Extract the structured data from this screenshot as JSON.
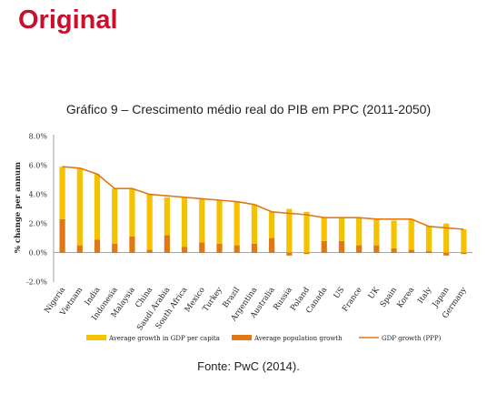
{
  "header": {
    "label": "Original"
  },
  "source": "Fonte: PwC (2014).",
  "chart_data": {
    "type": "bar",
    "title": "Gráfico 9 – Crescimento médio real do PIB em PPC (2011-2050)",
    "ylabel": "% change per annum",
    "ylim": [
      -2,
      8
    ],
    "yticks": [
      "8.0%",
      "6.0%",
      "4.0%",
      "2.0%",
      "0.0%",
      "-2.0%"
    ],
    "categories": [
      "Nigeria",
      "Vietnam",
      "India",
      "Indonesia",
      "Malaysia",
      "China",
      "Saudi Arabia",
      "South Africa",
      "Mexico",
      "Turkey",
      "Brazil",
      "Argentina",
      "Australia",
      "Russia",
      "Poland",
      "Canada",
      "US",
      "France",
      "UK",
      "Spain",
      "Korea",
      "Italy",
      "Japan",
      "Germany"
    ],
    "series": [
      {
        "name": "Average growth in GDP per capita",
        "type": "bar",
        "color": "#f5c200",
        "values": [
          3.6,
          5.3,
          4.5,
          3.8,
          3.3,
          3.8,
          2.6,
          3.4,
          3.0,
          3.0,
          3.0,
          2.7,
          1.8,
          3.0,
          2.8,
          1.6,
          1.6,
          1.9,
          1.8,
          1.9,
          2.1,
          1.7,
          2.0,
          1.6
        ]
      },
      {
        "name": "Average population growth",
        "type": "bar",
        "color": "#e07818",
        "values": [
          2.3,
          0.5,
          0.9,
          0.6,
          1.1,
          0.2,
          1.2,
          0.4,
          0.7,
          0.6,
          0.5,
          0.6,
          1.0,
          -0.2,
          -0.1,
          0.8,
          0.8,
          0.5,
          0.5,
          0.3,
          0.2,
          0.1,
          -0.2,
          -0.1
        ]
      },
      {
        "name": "GDP growth (PPP)",
        "type": "line",
        "color": "#e07818",
        "values": [
          5.9,
          5.8,
          5.4,
          4.4,
          4.4,
          4.0,
          3.9,
          3.8,
          3.7,
          3.6,
          3.5,
          3.3,
          2.8,
          2.7,
          2.6,
          2.4,
          2.4,
          2.4,
          2.3,
          2.3,
          2.3,
          1.8,
          1.7,
          1.6
        ]
      }
    ],
    "legend_position": "bottom",
    "grid": false
  }
}
